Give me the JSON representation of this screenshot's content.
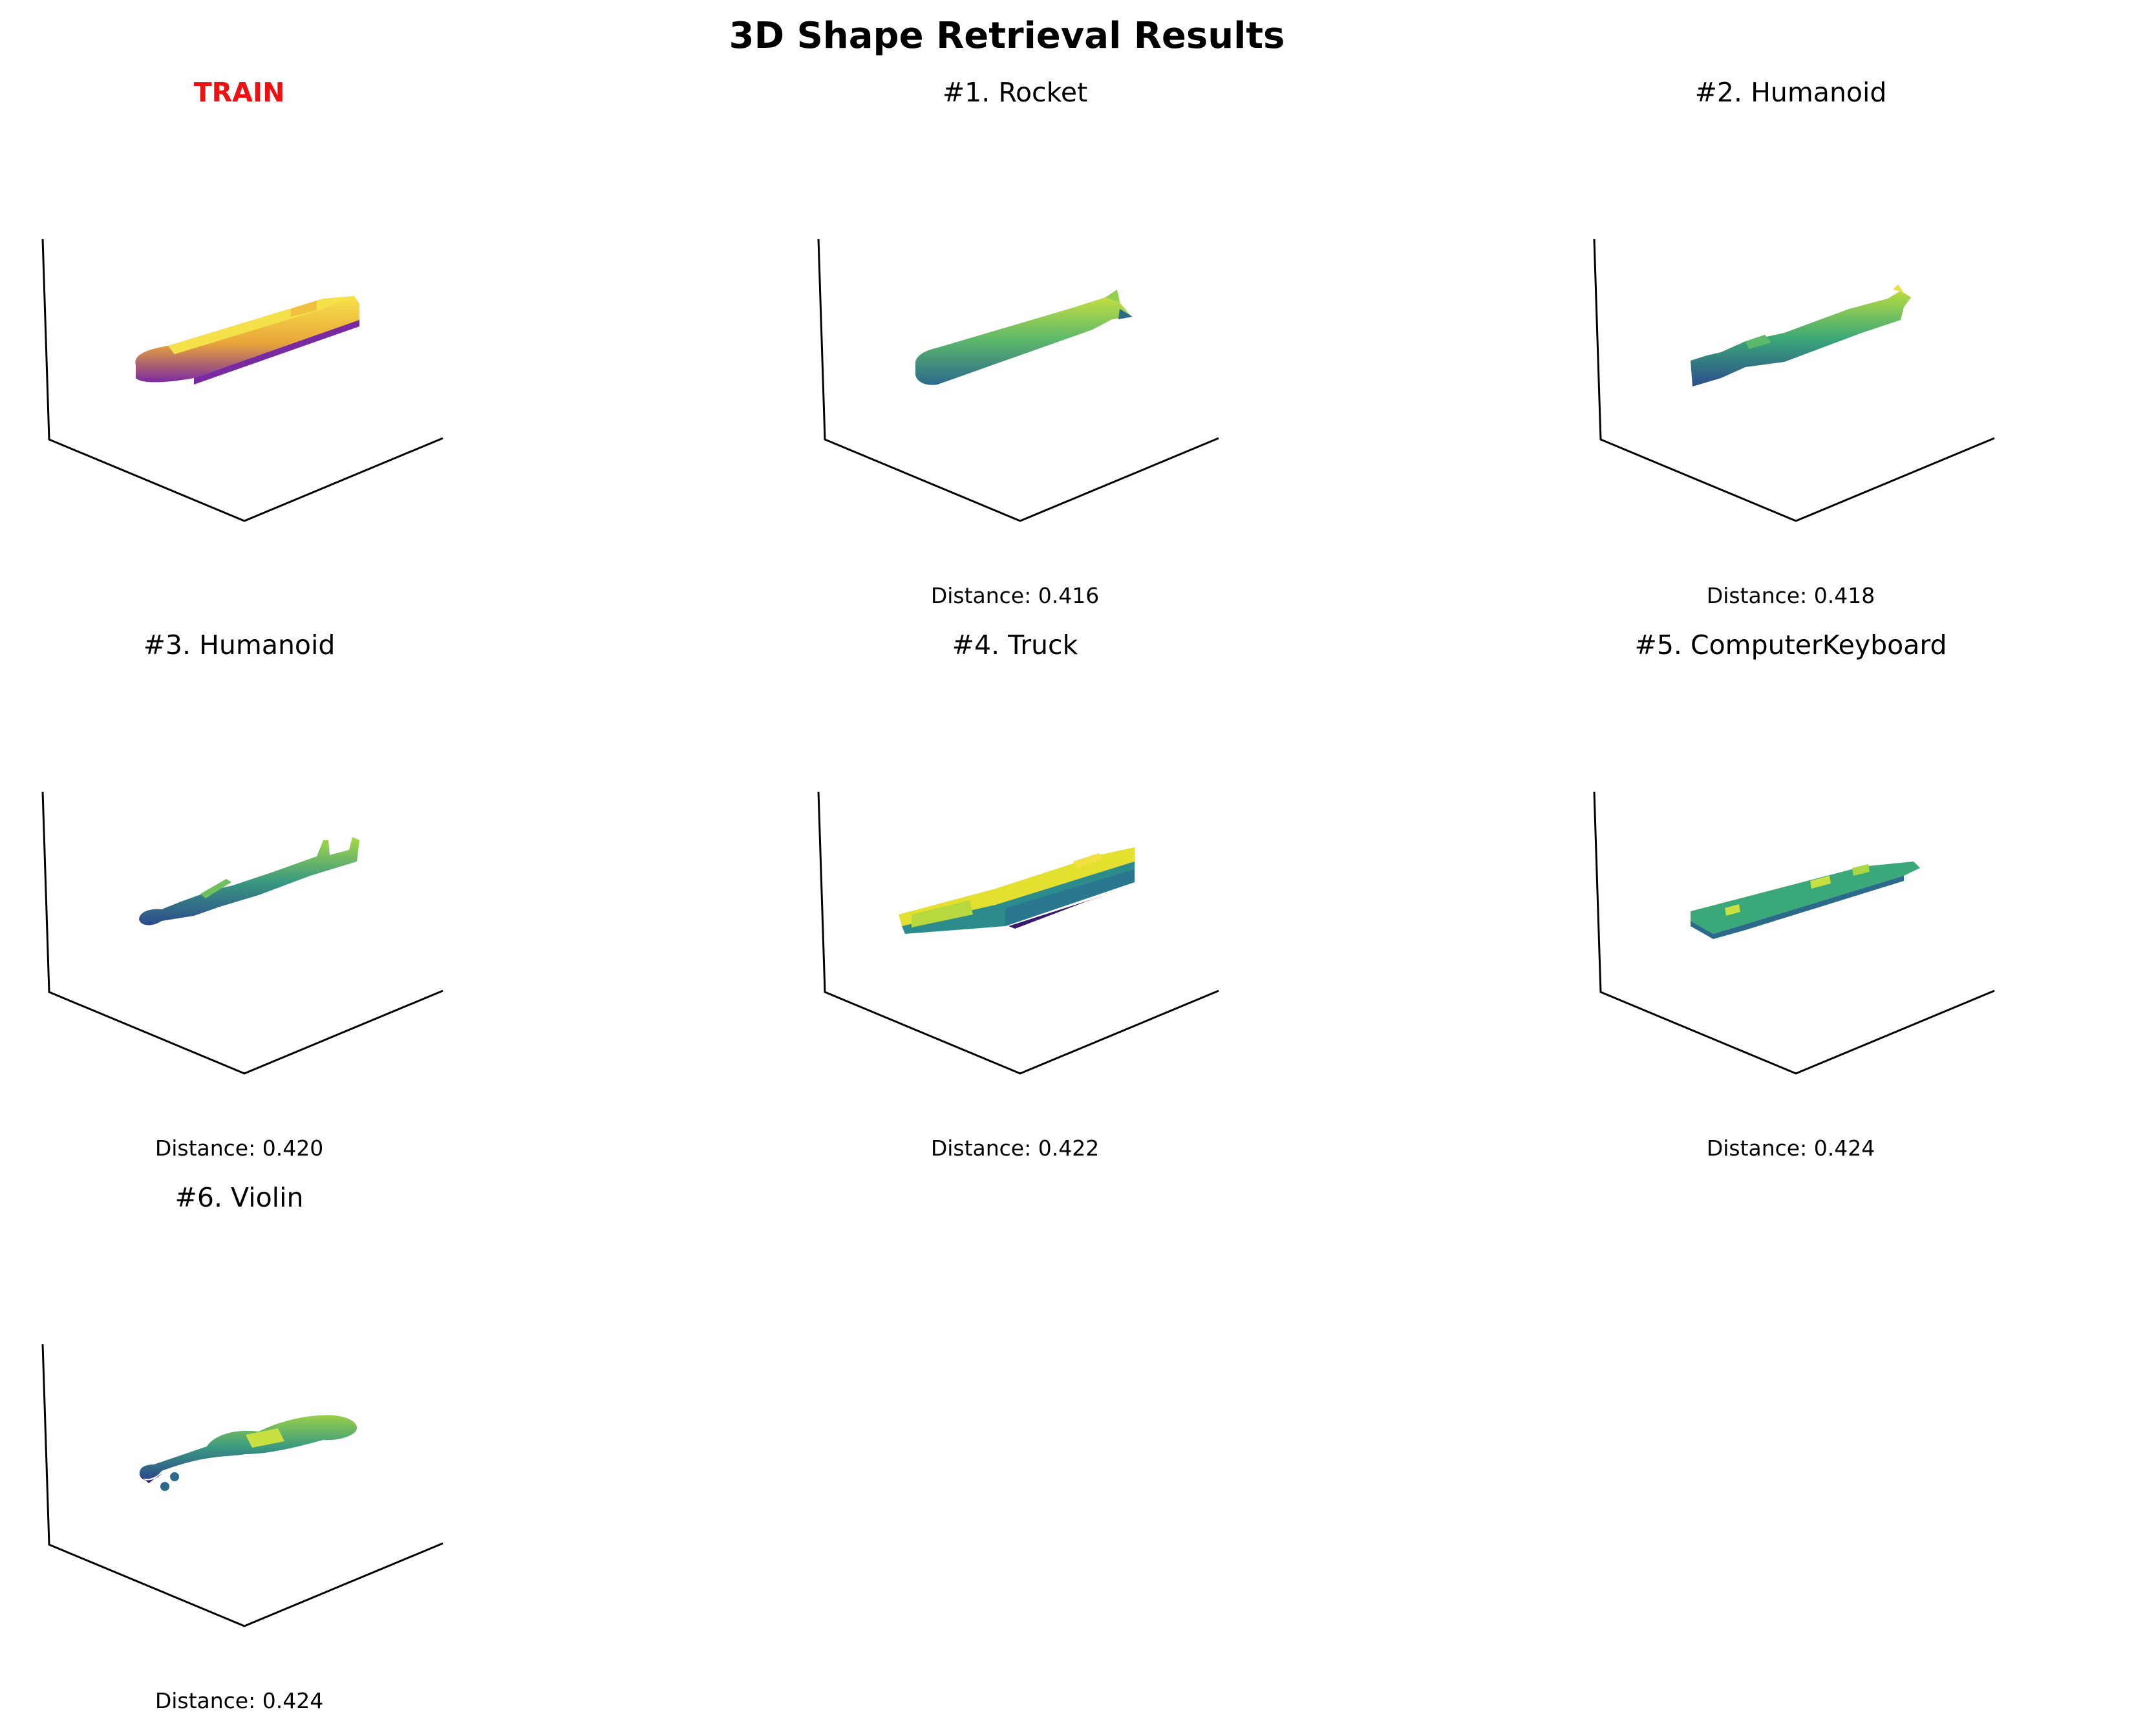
{
  "figure": {
    "title": "3D Shape Retrieval Results"
  },
  "query": {
    "label": "TRAIN",
    "label_color": "#ee1111",
    "colormap": "plasma"
  },
  "results": [
    {
      "title": "#1. Rocket",
      "distance_label": "Distance: 0.416",
      "distance": 0.416,
      "colormap": "viridis"
    },
    {
      "title": "#2. Humanoid",
      "distance_label": "Distance: 0.418",
      "distance": 0.418,
      "colormap": "viridis"
    },
    {
      "title": "#3. Humanoid",
      "distance_label": "Distance: 0.420",
      "distance": 0.42,
      "colormap": "viridis"
    },
    {
      "title": "#4. Truck",
      "distance_label": "Distance: 0.422",
      "distance": 0.422,
      "colormap": "viridis"
    },
    {
      "title": "#5. ComputerKeyboard",
      "distance_label": "Distance: 0.424",
      "distance": 0.424,
      "colormap": "viridis"
    },
    {
      "title": "#6. Violin",
      "distance_label": "Distance: 0.424",
      "distance": 0.424,
      "colormap": "viridis"
    }
  ],
  "colors": {
    "axis_line": "#000000",
    "plasma_light": "#f0e040",
    "plasma_mid": "#e8a030",
    "plasma_dark": "#7a2aa0",
    "viridis_light": "#c8e040",
    "viridis_mid": "#3aa878",
    "viridis_dark": "#2c5c8c",
    "viridis_deep": "#3a1a6a"
  }
}
